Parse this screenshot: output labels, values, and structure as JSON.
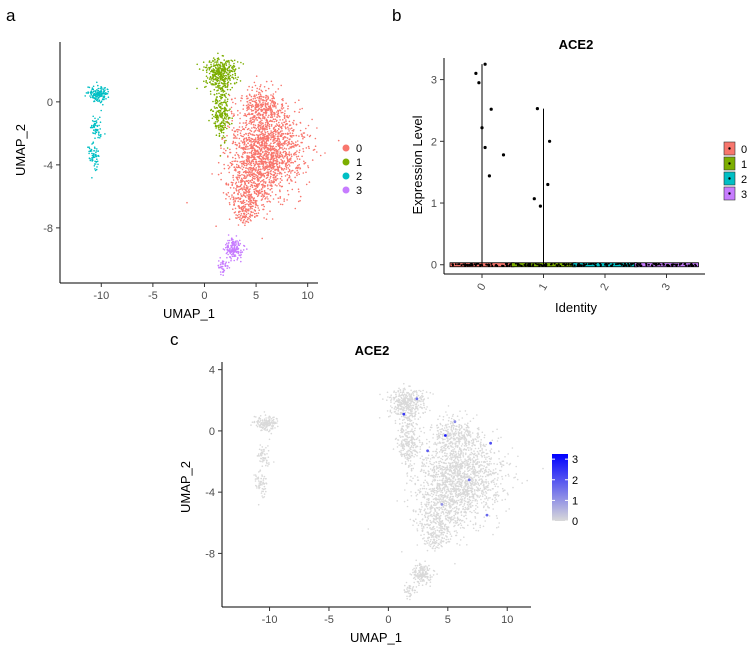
{
  "panels": {
    "a": {
      "letter": "a"
    },
    "b": {
      "letter": "b"
    },
    "c": {
      "letter": "c"
    }
  },
  "chart_data": [
    {
      "panel": "a",
      "type": "scatter",
      "title": "",
      "xlabel": "UMAP_1",
      "ylabel": "UMAP_2",
      "xlim": [
        -14,
        11
      ],
      "ylim": [
        -11.5,
        3.8
      ],
      "xticks": [
        -10,
        -5,
        0,
        5,
        10
      ],
      "yticks": [
        0,
        -4,
        -8
      ],
      "grid": false,
      "legend_position": "right",
      "series": [
        {
          "name": "0",
          "color": "#F8766D",
          "cluster_regions": [
            {
              "cx": 6.0,
              "cy": -3.0,
              "rx": 3.6,
              "ry": 2.8,
              "n": 1500
            },
            {
              "cx": 4.5,
              "cy": -5.5,
              "rx": 2.2,
              "ry": 1.6,
              "n": 350
            },
            {
              "cx": 5.5,
              "cy": -0.3,
              "rx": 1.8,
              "ry": 1.1,
              "n": 250
            },
            {
              "cx": 3.8,
              "cy": -7.0,
              "rx": 1.0,
              "ry": 0.8,
              "n": 100
            }
          ]
        },
        {
          "name": "1",
          "color": "#7CAE00",
          "cluster_regions": [
            {
              "cx": 1.5,
              "cy": 1.8,
              "rx": 1.5,
              "ry": 1.0,
              "n": 350
            },
            {
              "cx": 1.6,
              "cy": -0.7,
              "rx": 0.9,
              "ry": 1.8,
              "n": 250
            }
          ]
        },
        {
          "name": "2",
          "color": "#00BFC4",
          "cluster_regions": [
            {
              "cx": -10.3,
              "cy": 0.5,
              "rx": 0.8,
              "ry": 0.5,
              "n": 160
            },
            {
              "cx": -10.5,
              "cy": -1.6,
              "rx": 0.5,
              "ry": 0.9,
              "n": 60
            },
            {
              "cx": -10.7,
              "cy": -3.5,
              "rx": 0.5,
              "ry": 0.8,
              "n": 60
            }
          ]
        },
        {
          "name": "3",
          "color": "#C77CFF",
          "cluster_regions": [
            {
              "cx": 2.8,
              "cy": -9.3,
              "rx": 0.9,
              "ry": 0.7,
              "n": 160
            },
            {
              "cx": 1.8,
              "cy": -10.5,
              "rx": 0.5,
              "ry": 0.5,
              "n": 40
            }
          ]
        }
      ]
    },
    {
      "panel": "b",
      "type": "violin",
      "title": "ACE2",
      "xlabel": "Identity",
      "ylabel": "Expression Level",
      "categories": [
        "0",
        "1",
        "2",
        "3"
      ],
      "ylim": [
        -0.15,
        3.35
      ],
      "yticks": [
        0,
        1,
        2,
        3
      ],
      "grid": false,
      "legend_position": "right",
      "series": [
        {
          "name": "0",
          "color": "#F8766D",
          "max": 3.25,
          "points": [
            [
              -0.1,
              3.1
            ],
            [
              -0.05,
              2.95
            ],
            [
              0.05,
              3.25
            ],
            [
              0.15,
              2.52
            ],
            [
              0.0,
              2.22
            ],
            [
              0.05,
              1.9
            ],
            [
              0.35,
              1.78
            ],
            [
              0.12,
              1.44
            ]
          ]
        },
        {
          "name": "1",
          "color": "#7CAE00",
          "max": 2.53,
          "points": [
            [
              -0.1,
              2.53
            ],
            [
              0.1,
              2.0
            ],
            [
              0.07,
              1.3
            ],
            [
              -0.15,
              1.07
            ],
            [
              -0.05,
              0.95
            ]
          ]
        },
        {
          "name": "2",
          "color": "#00BFC4",
          "max": 0,
          "points": []
        },
        {
          "name": "3",
          "color": "#C77CFF",
          "max": 0,
          "points": []
        }
      ]
    },
    {
      "panel": "c",
      "type": "scatter",
      "title": "ACE2",
      "xlabel": "UMAP_1",
      "ylabel": "UMAP_2",
      "xlim": [
        -14,
        12
      ],
      "ylim": [
        -11.5,
        4.5
      ],
      "xticks": [
        -10,
        -5,
        0,
        5,
        10
      ],
      "yticks": [
        4,
        0,
        -4,
        -8
      ],
      "grid": false,
      "legend_position": "right",
      "colorbar": {
        "low_color": "#D9D9D9",
        "high_color": "#0000FF",
        "ticks": [
          0,
          1,
          2,
          3
        ],
        "range": [
          0,
          3.25
        ]
      },
      "highlights": [
        [
          4.8,
          -0.3,
          2.8
        ],
        [
          8.6,
          -0.8,
          2.1
        ],
        [
          2.4,
          2.1,
          1.6
        ],
        [
          5.6,
          0.6,
          1.2
        ],
        [
          3.3,
          -1.3,
          1.9
        ],
        [
          6.8,
          -3.2,
          1.5
        ],
        [
          4.5,
          -4.8,
          1.1
        ],
        [
          1.3,
          1.1,
          2.4
        ],
        [
          8.3,
          -5.5,
          1.7
        ]
      ]
    }
  ]
}
